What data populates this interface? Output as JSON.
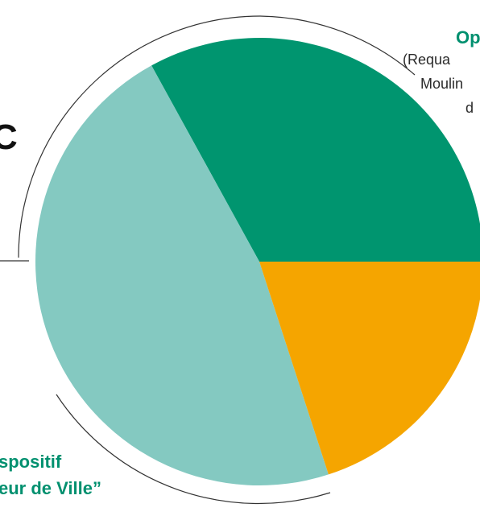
{
  "chart_data": {
    "type": "pie",
    "start_angle_deg": 0,
    "direction": "counterclockwise",
    "slices": [
      {
        "value": 33,
        "color": "#00956f"
      },
      {
        "value": 47,
        "color": "#84c9c1"
      },
      {
        "value": 20,
        "color": "#f5a500"
      }
    ]
  },
  "labels": {
    "op_title": "Op",
    "op_line1": "(Requa",
    "op_line2": "Moulin",
    "op_line3": "d",
    "dispositif_line1": "spositif",
    "dispositif_line2": "eur de Ville”"
  },
  "left_glyph": "C"
}
